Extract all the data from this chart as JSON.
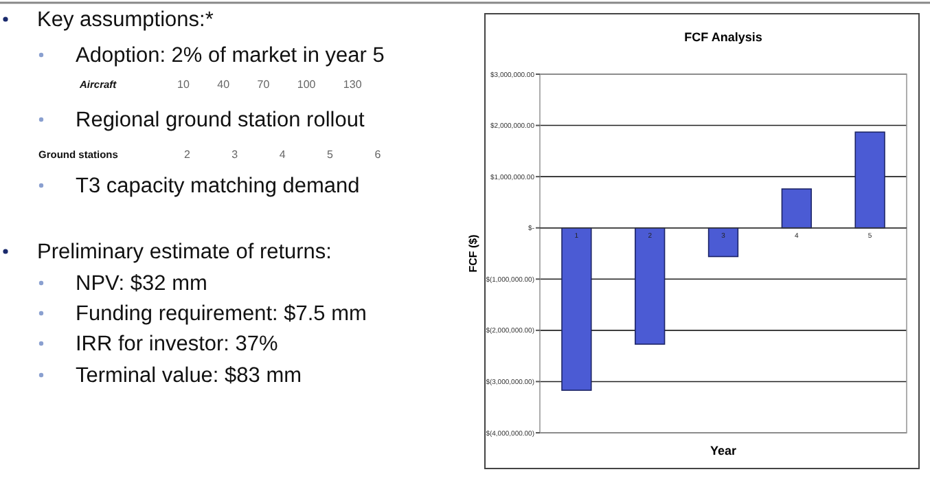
{
  "chart_data": [
    {
      "type": "other",
      "annotations": [
        "Key assumptions:*",
        "Adoption: 2% of market in year 5",
        "Aircraft 10 40 70 100 130",
        "Regional ground station rollout",
        "Ground stations 2 3 4 5 6",
        "T3 capacity matching demand",
        "Preliminary estimate of returns:",
        "NPV: $32 mm",
        "Funding requirement:  $7.5 mm",
        "IRR for investor: 37%",
        "Terminal value: $83 mm"
      ]
    },
    {
      "type": "bar",
      "title": "FCF Analysis",
      "xlabel": "Year",
      "ylabel": "FCF ($)",
      "categories": [
        "1",
        "2",
        "3",
        "4",
        "5"
      ],
      "values": [
        -3170000,
        -2270000,
        -560000,
        760000,
        1870000
      ],
      "color": "#4b5bd4",
      "ylim": [
        -4000000,
        3000000
      ],
      "yticks": [
        {
          "value": -4000000,
          "label": "$(4,000,000.00)"
        },
        {
          "value": -3000000,
          "label": "$(3,000,000.00)"
        },
        {
          "value": -2000000,
          "label": "$(2,000,000.00)"
        },
        {
          "value": -1000000,
          "label": "$(1,000,000.00)"
        },
        {
          "value": 0,
          "label": "$-"
        },
        {
          "value": 1000000,
          "label": "$1,000,000.00"
        },
        {
          "value": 2000000,
          "label": "$2,000,000.00"
        },
        {
          "value": 3000000,
          "label": "$3,000,000.00"
        }
      ],
      "grid": "y"
    }
  ]
}
